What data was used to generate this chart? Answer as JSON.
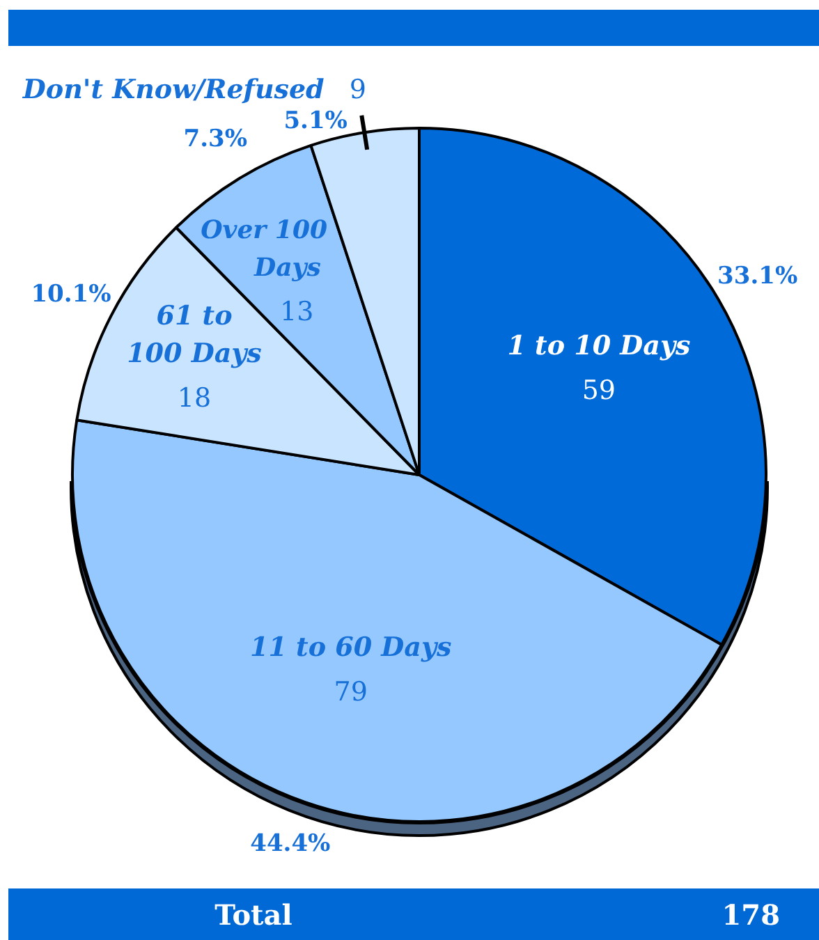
{
  "chart_data": {
    "type": "pie",
    "categories": [
      "1 to 10 Days",
      "11 to 60 Days",
      "61 to 100 Days",
      "Over 100 Days",
      "Don't Know/Refused"
    ],
    "values": [
      59,
      79,
      18,
      13,
      9
    ],
    "colors": [
      "#006ad8",
      "#94c8ff",
      "#c8e4ff",
      "#94c8ff",
      "#c8e4ff"
    ],
    "data_labels": true,
    "annotations": [
      {
        "text": "33.1%",
        "x": "1 to 10 Days"
      },
      {
        "text": "44.4%",
        "x": "11 to 60 Days"
      },
      {
        "text": "10.1%",
        "x": "61 to 100 Days"
      },
      {
        "text": "7.3%",
        "x": "Over 100 Days"
      },
      {
        "text": "5.1%",
        "x": "Don't Know/Refused"
      },
      "Total",
      "178"
    ]
  }
}
